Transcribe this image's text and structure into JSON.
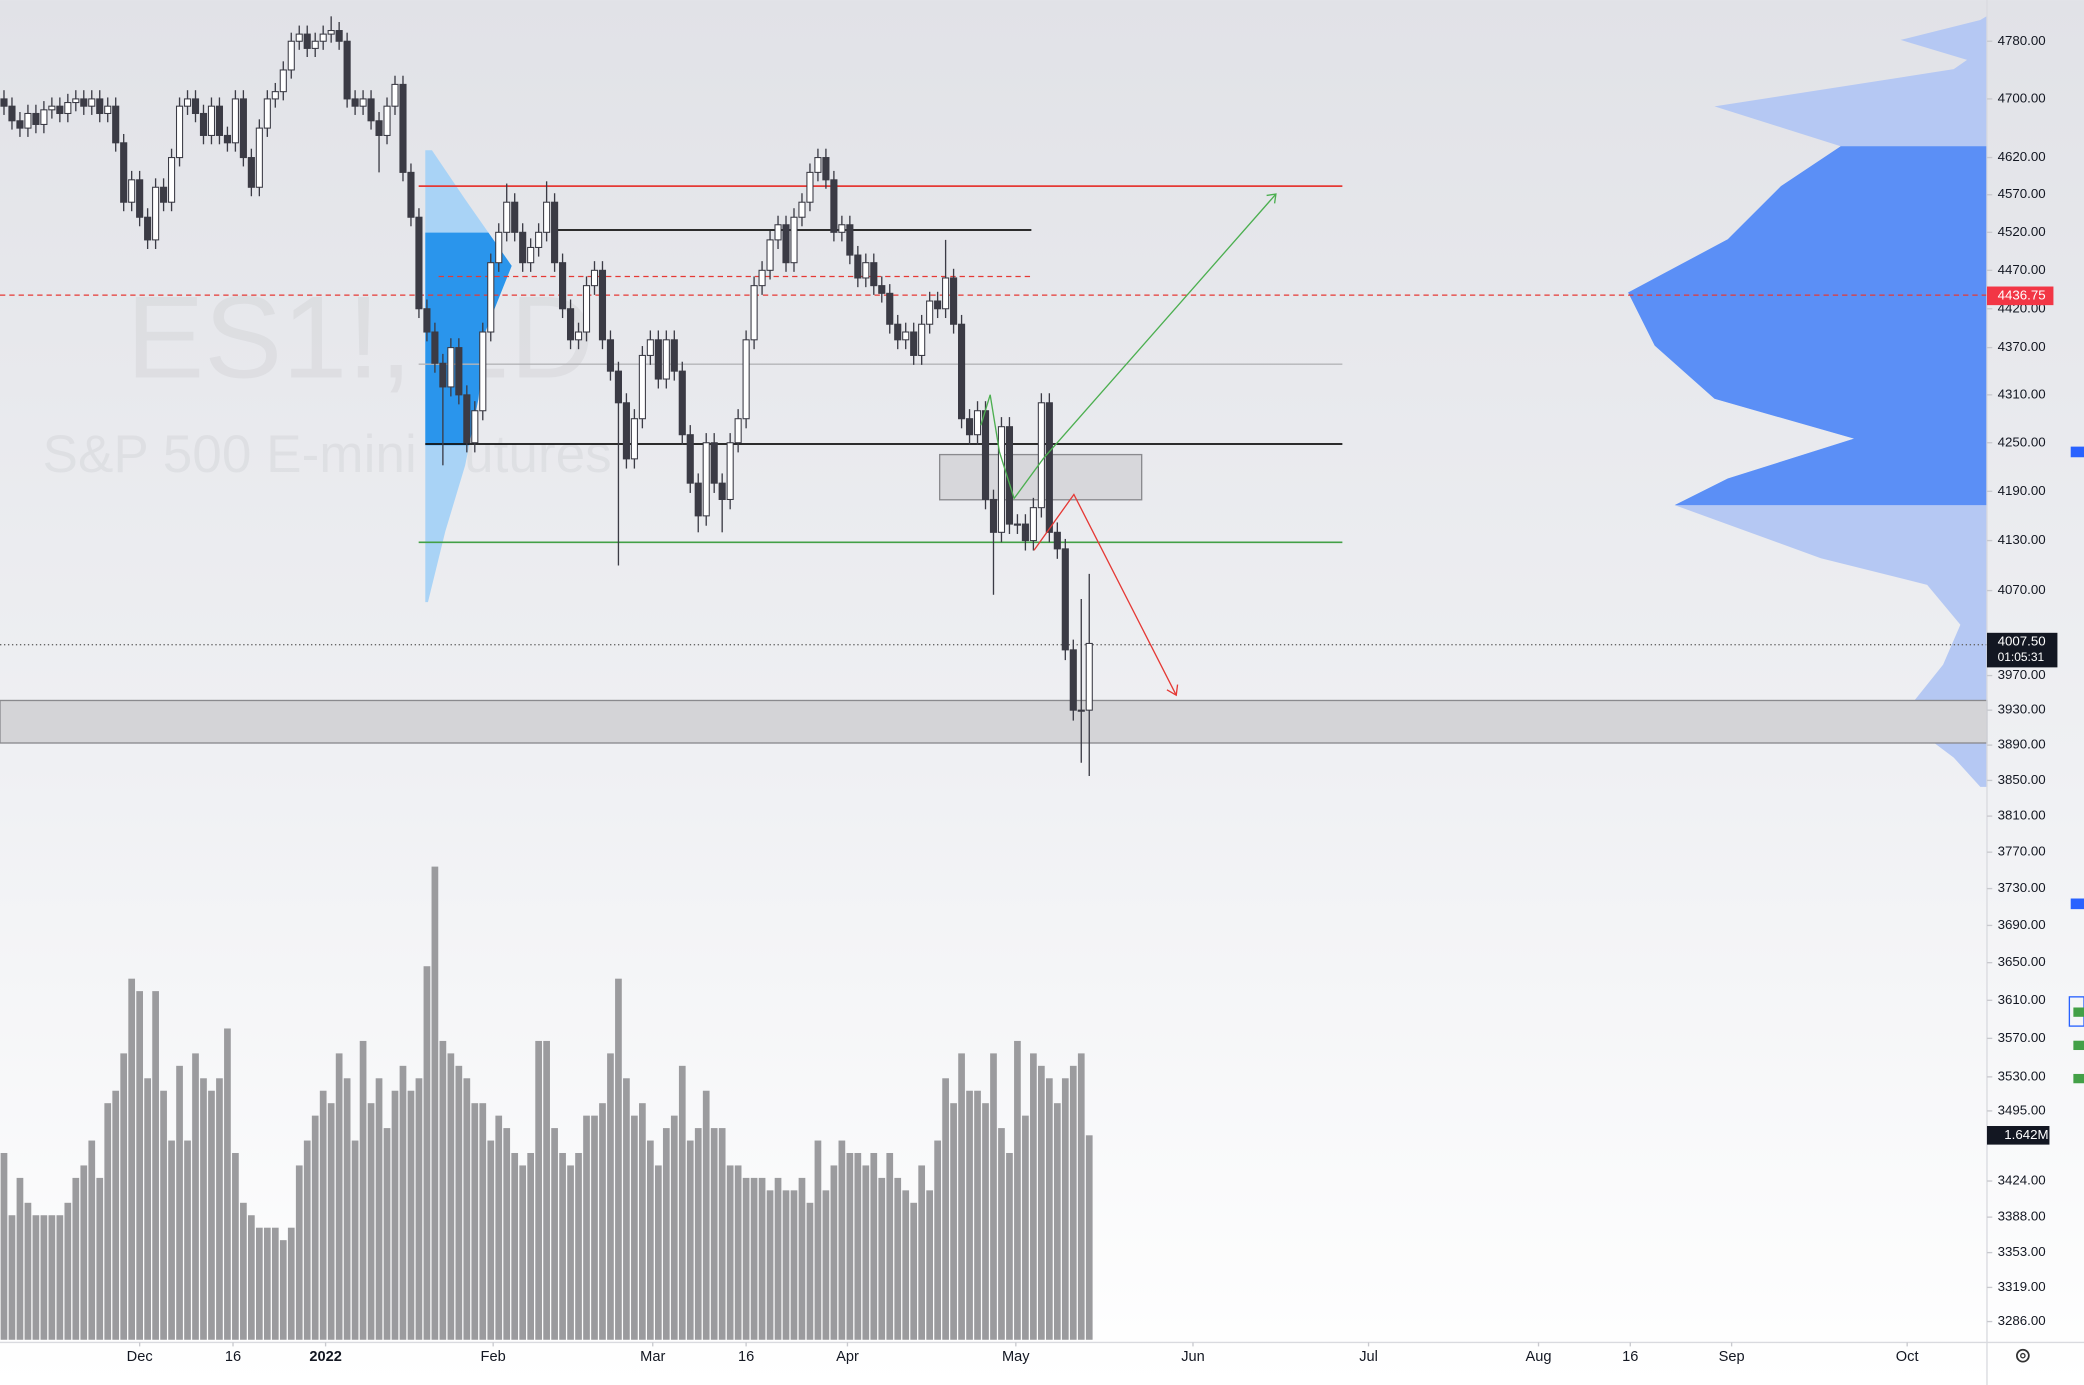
{
  "chart_data": {
    "type": "candlestick",
    "watermark_symbol": "ES1!, 1D",
    "watermark_name": "S&P 500 E-mini Futures",
    "log_scale": true,
    "grid": false,
    "ylim": [
      3266,
      4838
    ],
    "xlim": [
      -0.5,
      248.5
    ],
    "yticks": [
      {
        "value": 4780,
        "label": "4780.00"
      },
      {
        "value": 4700,
        "label": "4700.00"
      },
      {
        "value": 4620,
        "label": "4620.00"
      },
      {
        "value": 4570,
        "label": "4570.00"
      },
      {
        "value": 4520,
        "label": "4520.00"
      },
      {
        "value": 4470,
        "label": "4470.00"
      },
      {
        "value": 4420,
        "label": "4420.00"
      },
      {
        "value": 4370,
        "label": "4370.00"
      },
      {
        "value": 4310,
        "label": "4310.00"
      },
      {
        "value": 4250,
        "label": "4250.00"
      },
      {
        "value": 4190,
        "label": "4190.00"
      },
      {
        "value": 4130,
        "label": "4130.00"
      },
      {
        "value": 4070,
        "label": "4070.00"
      },
      {
        "value": 3970,
        "label": "3970.00"
      },
      {
        "value": 3930,
        "label": "3930.00"
      },
      {
        "value": 3890,
        "label": "3890.00"
      },
      {
        "value": 3850,
        "label": "3850.00"
      },
      {
        "value": 3810,
        "label": "3810.00"
      },
      {
        "value": 3770,
        "label": "3770.00"
      },
      {
        "value": 3730,
        "label": "3730.00"
      },
      {
        "value": 3690,
        "label": "3690.00"
      },
      {
        "value": 3650,
        "label": "3650.00"
      },
      {
        "value": 3610,
        "label": "3610.00"
      },
      {
        "value": 3570,
        "label": "3570.00"
      },
      {
        "value": 3530,
        "label": "3530.00"
      },
      {
        "value": 3495,
        "label": "3495.00"
      },
      {
        "value": 3424,
        "label": "3424.00"
      },
      {
        "value": 3388,
        "label": "3388.00"
      },
      {
        "value": 3353,
        "label": "3353.00"
      },
      {
        "value": 3319,
        "label": "3319.00"
      },
      {
        "value": 3286,
        "label": "3286.00"
      }
    ],
    "xticks": [
      {
        "value": 17,
        "label": "Dec"
      },
      {
        "value": 28.7,
        "label": "16"
      },
      {
        "value": 40.3,
        "label": "2022"
      },
      {
        "value": 61.3,
        "label": "Feb"
      },
      {
        "value": 81.3,
        "label": "Mar"
      },
      {
        "value": 93,
        "label": "16"
      },
      {
        "value": 105.7,
        "label": "Apr"
      },
      {
        "value": 126.8,
        "label": "May"
      },
      {
        "value": 149,
        "label": "Jun"
      },
      {
        "value": 171,
        "label": "Jul"
      },
      {
        "value": 192.3,
        "label": "Aug"
      },
      {
        "value": 203.8,
        "label": "16"
      },
      {
        "value": 216.5,
        "label": "Sep"
      },
      {
        "value": 238.5,
        "label": "Oct"
      }
    ],
    "last_price": {
      "value": 4007.5,
      "label": "4007.50"
    },
    "countdown": "01:05:31",
    "marker_price": {
      "value": 4436.75,
      "label": "4436.75"
    },
    "up_color": "#ffffff",
    "down_color": "#3b3b45",
    "volume_color": "#9b9b9e",
    "ohlc": [
      [
        4700,
        4712,
        4678,
        4690
      ],
      [
        4690,
        4702,
        4658,
        4670
      ],
      [
        4670,
        4682,
        4648,
        4660
      ],
      [
        4660,
        4692,
        4648,
        4680
      ],
      [
        4680,
        4692,
        4653,
        4665
      ],
      [
        4665,
        4697,
        4653,
        4685
      ],
      [
        4685,
        4702,
        4673,
        4690
      ],
      [
        4690,
        4702,
        4668,
        4680
      ],
      [
        4680,
        4707,
        4668,
        4695
      ],
      [
        4695,
        4712,
        4683,
        4700
      ],
      [
        4700,
        4712,
        4678,
        4690
      ],
      [
        4690,
        4712,
        4678,
        4700
      ],
      [
        4700,
        4712,
        4668,
        4680
      ],
      [
        4680,
        4702,
        4668,
        4690
      ],
      [
        4690,
        4702,
        4628,
        4640
      ],
      [
        4640,
        4652,
        4548,
        4560
      ],
      [
        4560,
        4602,
        4548,
        4590
      ],
      [
        4590,
        4602,
        4528,
        4540
      ],
      [
        4540,
        4552,
        4498,
        4510
      ],
      [
        4510,
        4592,
        4498,
        4580
      ],
      [
        4580,
        4592,
        4548,
        4560
      ],
      [
        4560,
        4632,
        4548,
        4620
      ],
      [
        4620,
        4702,
        4608,
        4690
      ],
      [
        4690,
        4712,
        4678,
        4700
      ],
      [
        4700,
        4712,
        4668,
        4680
      ],
      [
        4680,
        4692,
        4638,
        4650
      ],
      [
        4650,
        4702,
        4638,
        4690
      ],
      [
        4690,
        4702,
        4638,
        4650
      ],
      [
        4650,
        4662,
        4628,
        4640
      ],
      [
        4640,
        4712,
        4628,
        4700
      ],
      [
        4700,
        4712,
        4608,
        4620
      ],
      [
        4620,
        4632,
        4568,
        4580
      ],
      [
        4580,
        4672,
        4568,
        4660
      ],
      [
        4660,
        4712,
        4648,
        4700
      ],
      [
        4700,
        4722,
        4688,
        4710
      ],
      [
        4710,
        4752,
        4698,
        4740
      ],
      [
        4740,
        4792,
        4728,
        4780
      ],
      [
        4780,
        4802,
        4768,
        4790
      ],
      [
        4790,
        4802,
        4758,
        4770
      ],
      [
        4770,
        4792,
        4758,
        4780
      ],
      [
        4780,
        4802,
        4768,
        4790
      ],
      [
        4790,
        4815,
        4778,
        4795
      ],
      [
        4795,
        4807,
        4768,
        4780
      ],
      [
        4780,
        4792,
        4688,
        4700
      ],
      [
        4700,
        4712,
        4678,
        4690
      ],
      [
        4690,
        4712,
        4678,
        4700
      ],
      [
        4700,
        4712,
        4658,
        4670
      ],
      [
        4670,
        4682,
        4600,
        4650
      ],
      [
        4650,
        4702,
        4638,
        4690
      ],
      [
        4690,
        4732,
        4678,
        4720
      ],
      [
        4720,
        4732,
        4588,
        4600
      ],
      [
        4600,
        4612,
        4528,
        4540
      ],
      [
        4540,
        4552,
        4408,
        4420
      ],
      [
        4420,
        4432,
        4378,
        4390
      ],
      [
        4390,
        4402,
        4338,
        4350
      ],
      [
        4350,
        4362,
        4222,
        4320
      ],
      [
        4320,
        4382,
        4308,
        4370
      ],
      [
        4370,
        4382,
        4298,
        4310
      ],
      [
        4310,
        4322,
        4238,
        4250
      ],
      [
        4250,
        4302,
        4238,
        4290
      ],
      [
        4290,
        4402,
        4278,
        4390
      ],
      [
        4390,
        4492,
        4378,
        4480
      ],
      [
        4480,
        4532,
        4468,
        4520
      ],
      [
        4520,
        4585,
        4508,
        4560
      ],
      [
        4560,
        4572,
        4508,
        4520
      ],
      [
        4520,
        4532,
        4468,
        4480
      ],
      [
        4480,
        4512,
        4468,
        4500
      ],
      [
        4500,
        4532,
        4488,
        4520
      ],
      [
        4520,
        4588,
        4508,
        4560
      ],
      [
        4560,
        4572,
        4468,
        4480
      ],
      [
        4480,
        4492,
        4408,
        4420
      ],
      [
        4420,
        4432,
        4368,
        4380
      ],
      [
        4380,
        4402,
        4368,
        4390
      ],
      [
        4390,
        4462,
        4378,
        4450
      ],
      [
        4450,
        4482,
        4438,
        4470
      ],
      [
        4470,
        4482,
        4368,
        4380
      ],
      [
        4380,
        4392,
        4328,
        4340
      ],
      [
        4340,
        4352,
        4100,
        4300
      ],
      [
        4300,
        4312,
        4218,
        4230
      ],
      [
        4230,
        4292,
        4218,
        4280
      ],
      [
        4280,
        4372,
        4268,
        4360
      ],
      [
        4360,
        4392,
        4348,
        4380
      ],
      [
        4380,
        4392,
        4318,
        4330
      ],
      [
        4330,
        4392,
        4318,
        4380
      ],
      [
        4380,
        4392,
        4328,
        4340
      ],
      [
        4340,
        4352,
        4248,
        4260
      ],
      [
        4260,
        4272,
        4188,
        4200
      ],
      [
        4200,
        4212,
        4140,
        4160
      ],
      [
        4160,
        4262,
        4148,
        4250
      ],
      [
        4250,
        4262,
        4188,
        4200
      ],
      [
        4200,
        4212,
        4140,
        4180
      ],
      [
        4180,
        4262,
        4168,
        4250
      ],
      [
        4250,
        4292,
        4238,
        4280
      ],
      [
        4280,
        4392,
        4268,
        4380
      ],
      [
        4380,
        4462,
        4368,
        4450
      ],
      [
        4450,
        4482,
        4438,
        4470
      ],
      [
        4470,
        4522,
        4458,
        4510
      ],
      [
        4510,
        4542,
        4498,
        4530
      ],
      [
        4530,
        4542,
        4468,
        4480
      ],
      [
        4480,
        4552,
        4468,
        4540
      ],
      [
        4540,
        4572,
        4528,
        4560
      ],
      [
        4560,
        4612,
        4548,
        4600
      ],
      [
        4600,
        4632,
        4588,
        4620
      ],
      [
        4620,
        4632,
        4578,
        4590
      ],
      [
        4590,
        4602,
        4508,
        4520
      ],
      [
        4520,
        4542,
        4508,
        4530
      ],
      [
        4530,
        4542,
        4478,
        4490
      ],
      [
        4490,
        4502,
        4448,
        4460
      ],
      [
        4460,
        4492,
        4448,
        4480
      ],
      [
        4480,
        4492,
        4438,
        4450
      ],
      [
        4450,
        4462,
        4428,
        4440
      ],
      [
        4440,
        4452,
        4388,
        4400
      ],
      [
        4400,
        4412,
        4368,
        4380
      ],
      [
        4380,
        4402,
        4368,
        4390
      ],
      [
        4390,
        4402,
        4348,
        4360
      ],
      [
        4360,
        4412,
        4348,
        4400
      ],
      [
        4400,
        4442,
        4388,
        4430
      ],
      [
        4430,
        4442,
        4408,
        4420
      ],
      [
        4420,
        4510,
        4408,
        4460
      ],
      [
        4460,
        4472,
        4388,
        4400
      ],
      [
        4400,
        4412,
        4268,
        4280
      ],
      [
        4280,
        4292,
        4248,
        4260
      ],
      [
        4260,
        4302,
        4248,
        4290
      ],
      [
        4290,
        4302,
        4168,
        4180
      ],
      [
        4180,
        4192,
        4065,
        4140
      ],
      [
        4140,
        4282,
        4128,
        4270
      ],
      [
        4270,
        4282,
        4138,
        4150
      ],
      [
        4150,
        4162,
        4138,
        4150
      ],
      [
        4150,
        4162,
        4118,
        4130
      ],
      [
        4130,
        4182,
        4118,
        4170
      ],
      [
        4170,
        4312,
        4158,
        4300
      ],
      [
        4300,
        4312,
        4128,
        4140
      ],
      [
        4140,
        4152,
        4108,
        4120
      ],
      [
        4120,
        4132,
        3988,
        4000
      ],
      [
        4000,
        4012,
        3918,
        3930
      ],
      [
        3930,
        4060,
        3870,
        3930
      ],
      [
        3930,
        4090,
        3855,
        4007.5
      ]
    ],
    "volume": [
      1.5,
      1.0,
      1.3,
      1.1,
      1.0,
      1.0,
      1.0,
      1.0,
      1.1,
      1.3,
      1.4,
      1.6,
      1.3,
      1.9,
      2.0,
      2.3,
      2.9,
      2.8,
      2.1,
      2.8,
      2.0,
      1.6,
      2.2,
      1.6,
      2.3,
      2.1,
      2.0,
      2.1,
      2.5,
      1.5,
      1.1,
      1.0,
      0.9,
      0.9,
      0.9,
      0.8,
      0.9,
      1.4,
      1.6,
      1.8,
      2.0,
      1.9,
      2.3,
      2.1,
      1.6,
      2.4,
      1.9,
      2.1,
      1.7,
      2.0,
      2.2,
      2.0,
      2.1,
      3.0,
      3.8,
      2.4,
      2.3,
      2.2,
      2.1,
      1.9,
      1.9,
      1.6,
      1.8,
      1.7,
      1.5,
      1.4,
      1.5,
      2.4,
      2.4,
      1.7,
      1.5,
      1.4,
      1.5,
      1.8,
      1.8,
      1.9,
      2.3,
      2.9,
      2.1,
      1.8,
      1.9,
      1.6,
      1.4,
      1.7,
      1.8,
      2.2,
      1.6,
      1.7,
      2.0,
      1.7,
      1.7,
      1.4,
      1.4,
      1.3,
      1.3,
      1.3,
      1.2,
      1.3,
      1.2,
      1.2,
      1.3,
      1.1,
      1.6,
      1.2,
      1.4,
      1.6,
      1.5,
      1.5,
      1.4,
      1.5,
      1.3,
      1.5,
      1.3,
      1.2,
      1.1,
      1.4,
      1.2,
      1.6,
      2.1,
      1.9,
      2.3,
      2.0,
      2.0,
      1.9,
      2.3,
      1.7,
      1.5,
      2.4,
      1.8,
      2.3,
      2.2,
      2.1,
      1.9,
      2.1,
      2.2,
      2.3,
      1.642
    ],
    "volume_value_labels": {
      "136": "1.642M"
    }
  }
}
